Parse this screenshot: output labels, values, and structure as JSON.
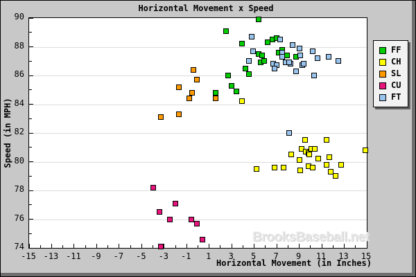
{
  "chart_data": {
    "type": "scatter",
    "title": "Horizontal Movement x Speed",
    "xlabel": "Horizontal Movement (in Inches)",
    "ylabel": "Speed (in MPH)",
    "watermark": "BrooksBaseball.net",
    "xlim": [
      -15,
      15
    ],
    "ylim": [
      74,
      90
    ],
    "x_major_tick_labels": [
      -15,
      -13,
      -11,
      -9,
      -7,
      -5,
      -3,
      -1,
      1,
      3,
      5,
      7,
      9,
      11,
      13,
      15
    ],
    "y_major_tick_labels": [
      74,
      76,
      78,
      80,
      82,
      84,
      86,
      88,
      90
    ],
    "minor_tick_step": 1,
    "grid": "horizontal-only",
    "gridline_color": "#dcdcdc",
    "background_color": "#c8c8c8",
    "plot_background_color": "#ffffff",
    "legend": {
      "position": "right",
      "entries": [
        "FF",
        "CH",
        "SL",
        "CU",
        "FT"
      ]
    },
    "series": [
      {
        "name": "FF",
        "color": "#00cc00",
        "points": [
          [
            2.5,
            89.1
          ],
          [
            5.4,
            89.9
          ],
          [
            3.9,
            88.2
          ],
          [
            6.2,
            88.3
          ],
          [
            6.6,
            88.5
          ],
          [
            7.0,
            88.6
          ],
          [
            5.4,
            87.5
          ],
          [
            5.7,
            87.4
          ],
          [
            7.2,
            87.6
          ],
          [
            7.5,
            87.8
          ],
          [
            7.9,
            87.4
          ],
          [
            8.7,
            87.3
          ],
          [
            5.6,
            86.9
          ],
          [
            5.9,
            87.0
          ],
          [
            4.2,
            86.5
          ],
          [
            4.5,
            86.1
          ],
          [
            2.7,
            86.0
          ],
          [
            3.0,
            85.3
          ],
          [
            3.4,
            84.9
          ],
          [
            1.6,
            84.8
          ]
        ]
      },
      {
        "name": "CH",
        "color": "#ffff00",
        "points": [
          [
            3.9,
            84.2
          ],
          [
            5.2,
            79.5
          ],
          [
            6.8,
            79.6
          ],
          [
            7.6,
            79.6
          ],
          [
            8.3,
            80.5
          ],
          [
            9.0,
            80.1
          ],
          [
            9.1,
            79.4
          ],
          [
            9.2,
            80.9
          ],
          [
            9.5,
            81.5
          ],
          [
            9.6,
            80.7
          ],
          [
            9.8,
            80.6
          ],
          [
            9.9,
            80.5
          ],
          [
            9.8,
            79.7
          ],
          [
            10.2,
            79.6
          ],
          [
            10.1,
            80.9
          ],
          [
            10.4,
            80.9
          ],
          [
            10.7,
            80.2
          ],
          [
            11.4,
            81.5
          ],
          [
            11.4,
            79.8
          ],
          [
            11.7,
            80.3
          ],
          [
            11.8,
            79.3
          ],
          [
            12.2,
            79.0
          ],
          [
            12.7,
            79.8
          ],
          [
            14.9,
            80.8
          ]
        ]
      },
      {
        "name": "SL",
        "color": "#ff9900",
        "points": [
          [
            -0.4,
            86.4
          ],
          [
            -0.1,
            85.7
          ],
          [
            -1.7,
            85.2
          ],
          [
            -0.5,
            84.8
          ],
          [
            -0.8,
            84.4
          ],
          [
            1.6,
            84.4
          ],
          [
            -1.7,
            83.3
          ],
          [
            -3.3,
            83.1
          ]
        ]
      },
      {
        "name": "CU",
        "color": "#e8147c",
        "points": [
          [
            -4.0,
            78.2
          ],
          [
            -2.0,
            77.1
          ],
          [
            -3.4,
            76.5
          ],
          [
            -2.5,
            76.0
          ],
          [
            -0.6,
            76.0
          ],
          [
            -0.1,
            75.7
          ],
          [
            0.4,
            74.6
          ],
          [
            -3.3,
            74.1
          ]
        ]
      },
      {
        "name": "FT",
        "color": "#99c4ee",
        "points": [
          [
            4.8,
            88.7
          ],
          [
            7.3,
            88.5
          ],
          [
            8.4,
            88.1
          ],
          [
            9.0,
            87.9
          ],
          [
            10.2,
            87.7
          ],
          [
            4.9,
            87.7
          ],
          [
            7.5,
            87.6
          ],
          [
            7.5,
            87.3
          ],
          [
            9.1,
            87.4
          ],
          [
            10.6,
            87.2
          ],
          [
            11.6,
            87.3
          ],
          [
            12.5,
            87.0
          ],
          [
            4.5,
            87.0
          ],
          [
            8.2,
            86.8
          ],
          [
            9.3,
            86.7
          ],
          [
            9.4,
            86.8
          ],
          [
            6.7,
            86.8
          ],
          [
            7.0,
            86.7
          ],
          [
            6.8,
            86.5
          ],
          [
            7.8,
            86.9
          ],
          [
            8.1,
            86.9
          ],
          [
            8.7,
            86.3
          ],
          [
            10.3,
            86.0
          ],
          [
            8.1,
            82.0
          ]
        ]
      }
    ]
  }
}
